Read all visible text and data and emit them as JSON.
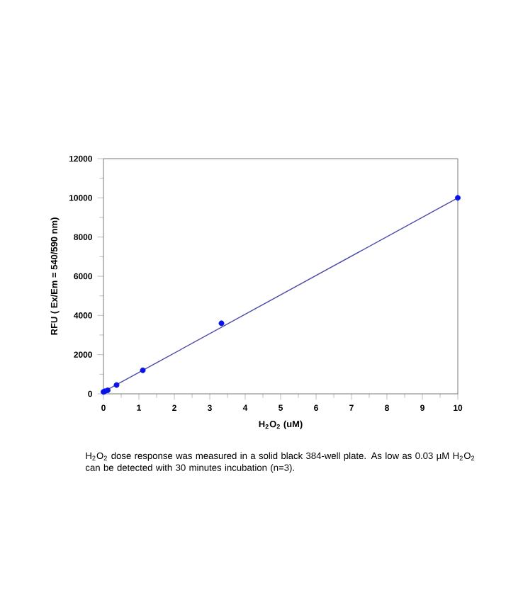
{
  "chart_data": {
    "type": "scatter",
    "xlabel": "**H$_{2}$O$_{2}$ (uM)**",
    "ylabel": "**RFU ( Ex/Em = 540/590 nm)**",
    "x": [
      0,
      0.04,
      0.12,
      0.37,
      1.11,
      3.33,
      10
    ],
    "series": [
      {
        "color": "#0a14e6",
        "marker": "circle",
        "values": [
          100,
          130,
          180,
          450,
          1200,
          3600,
          10000
        ]
      },
      {
        "type": "line",
        "color": "#4a4aa8",
        "marker": "none",
        "x": [
          0,
          10
        ],
        "values": [
          100,
          10000
        ]
      }
    ],
    "xlim": [
      0,
      10
    ],
    "ylim": [
      0,
      12000
    ],
    "xticks": [
      0,
      1,
      2,
      3,
      4,
      5,
      6,
      7,
      8,
      9,
      10
    ],
    "yticks": [
      0,
      2000,
      4000,
      6000,
      8000,
      10000,
      12000
    ],
    "grid": false,
    "annotations": [
      "H$_{2}$O$_{2}$ dose response was measured in a solid black 384-well plate. As low as 0.03 µM H$_{2}$O$_{2}$ can be detected with 30 minutes incubation (n=3)."
    ]
  }
}
